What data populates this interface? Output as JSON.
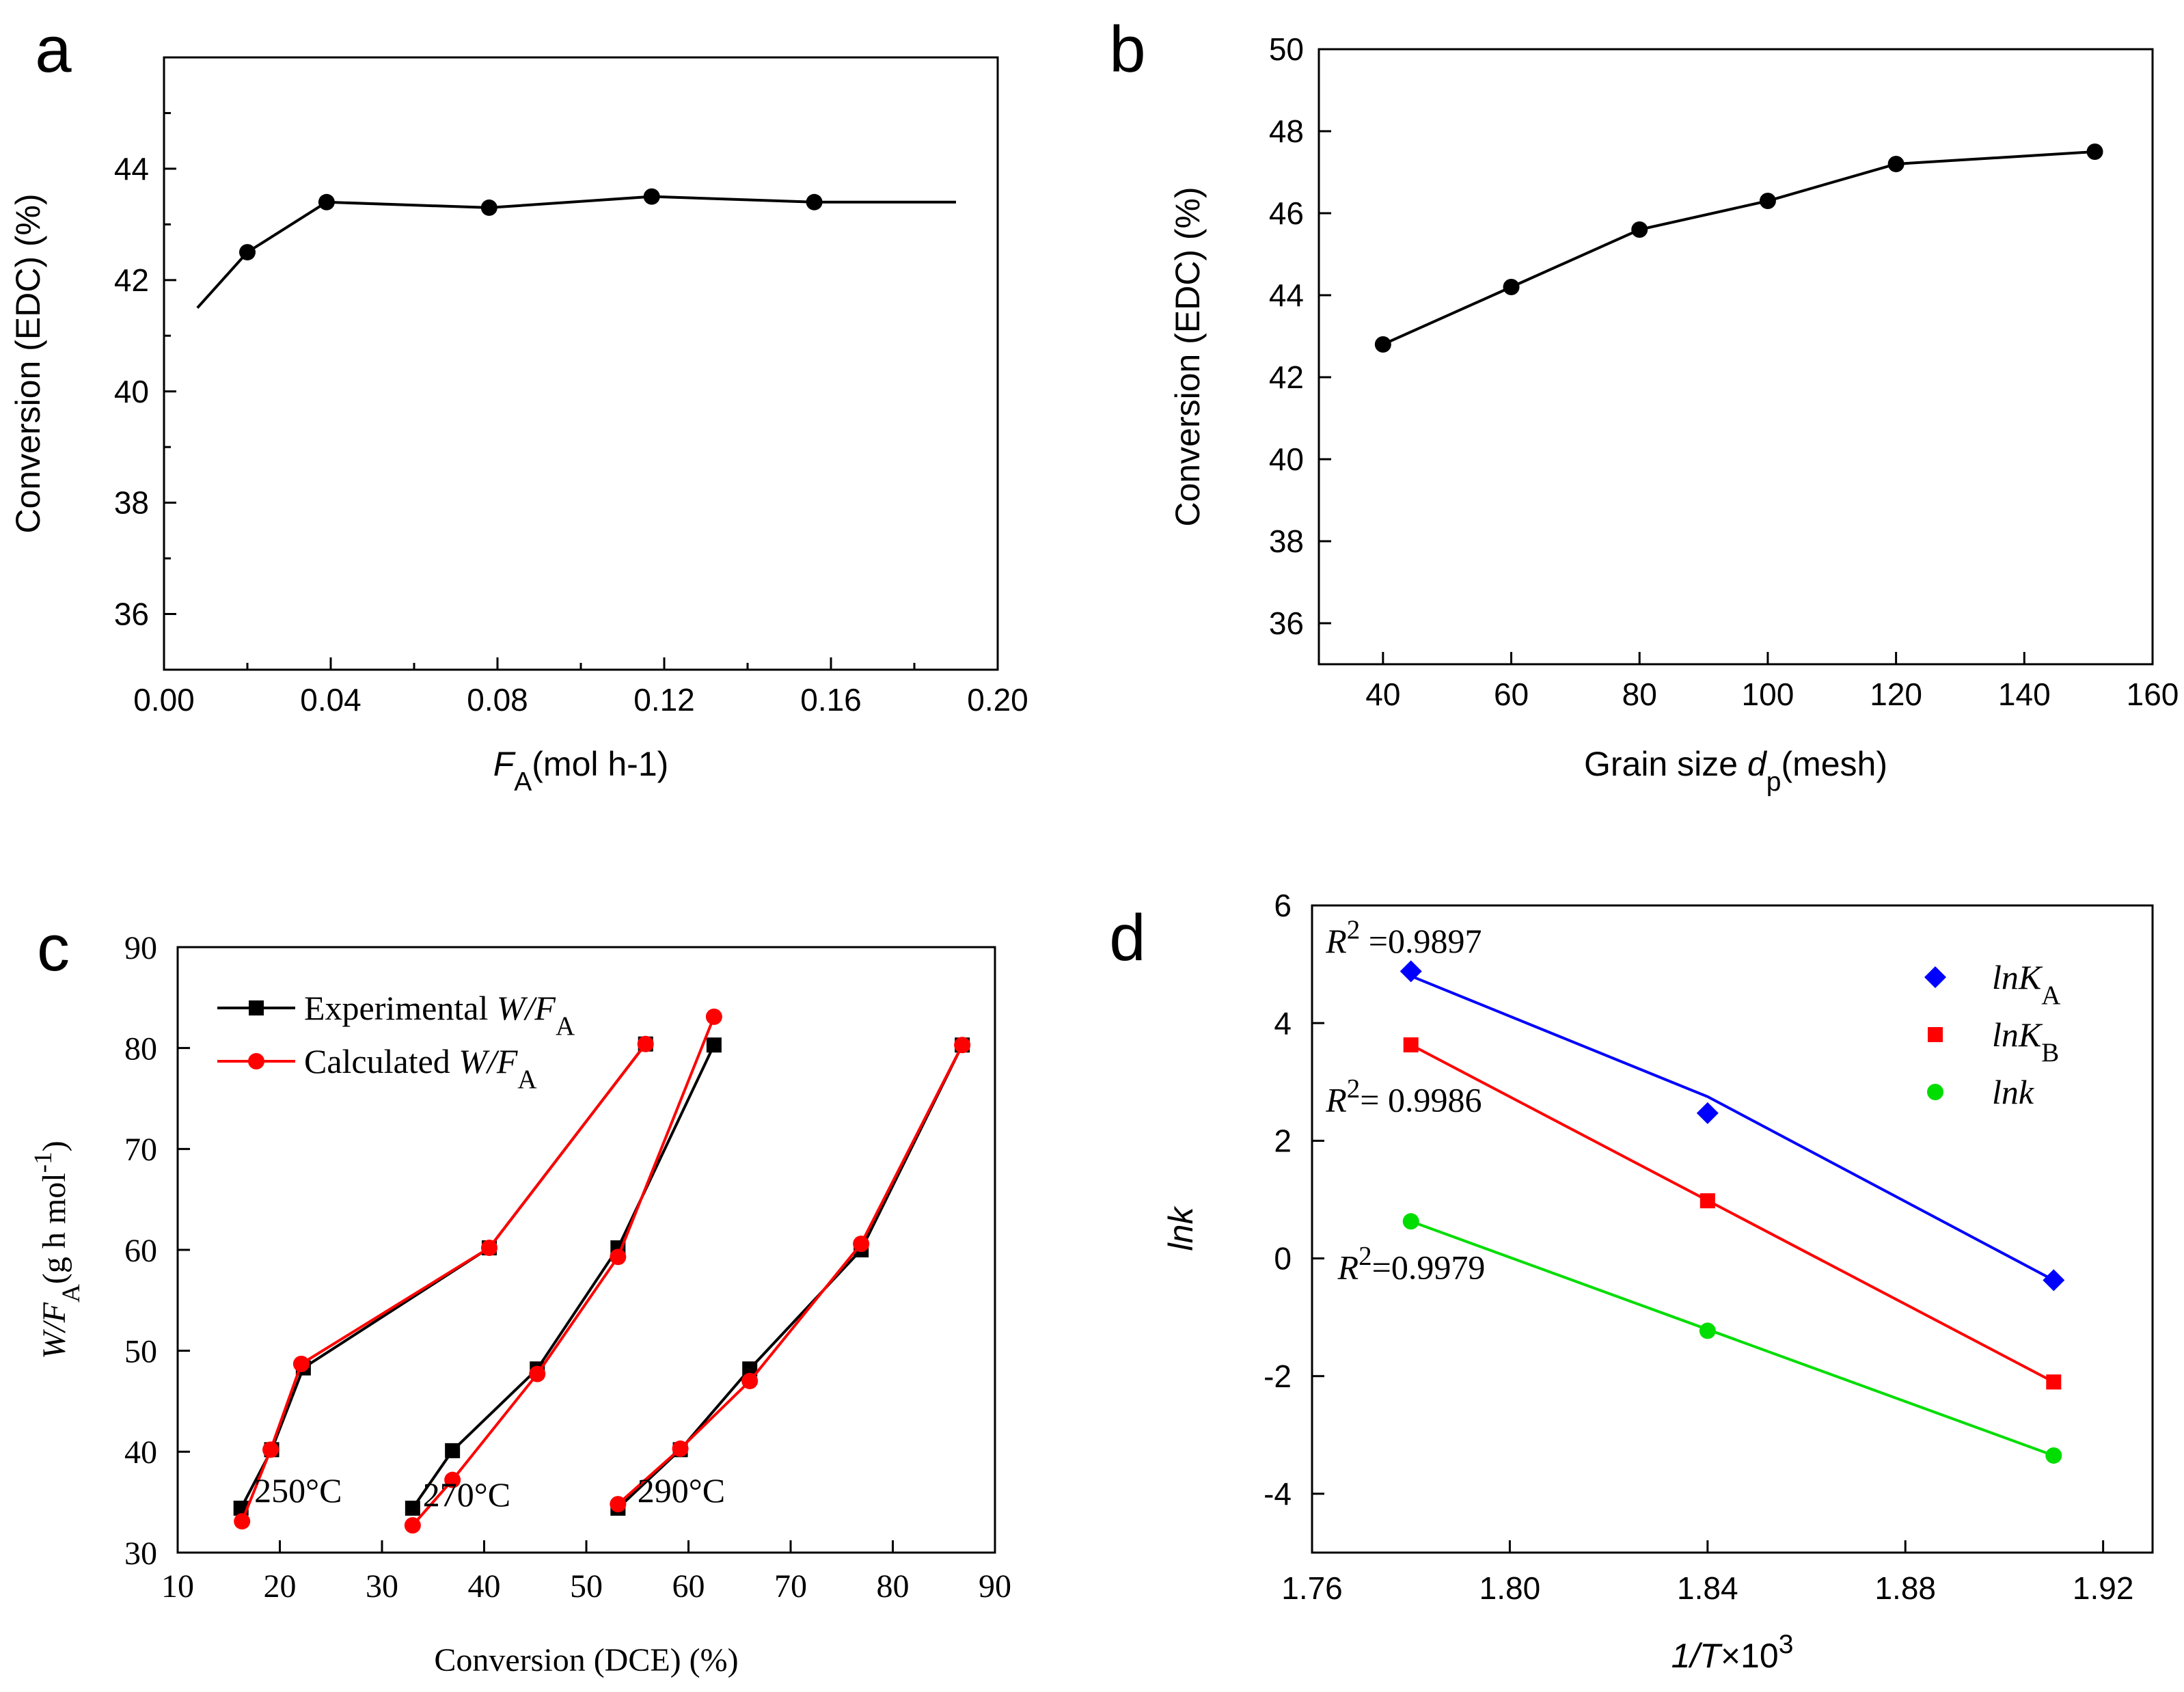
{
  "colors": {
    "axis": "#000000",
    "black": "#000000",
    "red": "#ff0000",
    "blue": "#0000ff",
    "green": "#00dd00",
    "background": "#ffffff"
  },
  "chart_data": [
    {
      "id": "a",
      "panel_label": "a",
      "type": "line",
      "title": "",
      "xlabel": {
        "main": "F",
        "sub": "A",
        "rest": "(mol h-1)"
      },
      "ylabel": "Conversion (EDC) (%)",
      "xlim": [
        0.0,
        0.2
      ],
      "ylim": [
        35,
        46
      ],
      "xticks": [
        0.0,
        0.04,
        0.08,
        0.12,
        0.16,
        0.2
      ],
      "xtick_labels": [
        "0.00",
        "0.04",
        "0.08",
        "0.12",
        "0.16",
        "0.20"
      ],
      "yticks": [
        36,
        38,
        40,
        42,
        44
      ],
      "ytick_labels": [
        "36",
        "38",
        "40",
        "42",
        "44"
      ],
      "grid": false,
      "series": [
        {
          "name": "Conversion",
          "color": "#000000",
          "marker": "circle",
          "line_x": [
            0.008,
            0.02,
            0.039,
            0.078,
            0.117,
            0.156,
            0.19
          ],
          "line_y": [
            41.5,
            42.5,
            43.4,
            43.3,
            43.5,
            43.4,
            43.4
          ],
          "x": [
            0.02,
            0.039,
            0.078,
            0.117,
            0.156
          ],
          "y": [
            42.5,
            43.4,
            43.3,
            43.5,
            43.4
          ]
        }
      ]
    },
    {
      "id": "b",
      "panel_label": "b",
      "type": "line",
      "title": "",
      "xlabel": {
        "main": "Grain size ",
        "italic": "d",
        "sub": "p",
        "rest": "(mesh)"
      },
      "ylabel": "Conversion (EDC) (%)",
      "xlim": [
        30,
        160
      ],
      "ylim": [
        35,
        50
      ],
      "xticks": [
        40,
        60,
        80,
        100,
        120,
        140,
        160
      ],
      "xtick_labels": [
        "40",
        "60",
        "80",
        "100",
        "120",
        "140",
        "160"
      ],
      "yticks": [
        36,
        38,
        40,
        42,
        44,
        46,
        48,
        50
      ],
      "ytick_labels": [
        "36",
        "38",
        "40",
        "42",
        "44",
        "46",
        "48",
        "50"
      ],
      "grid": false,
      "series": [
        {
          "name": "Conversion",
          "color": "#000000",
          "marker": "circle",
          "x": [
            40,
            60,
            80,
            100,
            120,
            151
          ],
          "y": [
            42.8,
            44.2,
            45.6,
            46.3,
            47.2,
            47.5
          ]
        }
      ]
    },
    {
      "id": "c",
      "panel_label": "c",
      "type": "line",
      "title": "",
      "xlabel": "Conversion (DCE) (%)",
      "ylabel": {
        "main": "W/F",
        "sub": "A",
        "rest": "(g h mol",
        "sup": "-1",
        "close": ")"
      },
      "xlim": [
        10,
        90
      ],
      "ylim": [
        30,
        90
      ],
      "xticks": [
        10,
        20,
        30,
        40,
        50,
        60,
        70,
        80,
        90
      ],
      "xtick_labels": [
        "10",
        "20",
        "30",
        "40",
        "50",
        "60",
        "70",
        "80",
        "90"
      ],
      "yticks": [
        30,
        40,
        50,
        60,
        70,
        80,
        90
      ],
      "ytick_labels": [
        "30",
        "40",
        "50",
        "60",
        "70",
        "80",
        "90"
      ],
      "grid": false,
      "legend": {
        "position": "top-left",
        "entries": [
          {
            "prefix": "Experimental ",
            "italic": "W/F",
            "sub": "A"
          },
          {
            "prefix": "Calculated ",
            "italic": "W/F",
            "sub": "A"
          }
        ]
      },
      "annotations": [
        {
          "text": "250°C",
          "x": 17.5,
          "y": 35
        },
        {
          "text": "270°C",
          "x": 34,
          "y": 34.6
        },
        {
          "text": "290°C",
          "x": 55,
          "y": 35
        }
      ],
      "series": [
        {
          "name": "Experimental W/FA 250°C",
          "color": "#000000",
          "marker": "square",
          "x": [
            16.2,
            19.2,
            22.3,
            40.5,
            55.8
          ],
          "y": [
            34.4,
            40.2,
            48.3,
            60.2,
            80.4
          ]
        },
        {
          "name": "Calculated W/FA 250°C",
          "color": "#ff0000",
          "marker": "circle",
          "x": [
            16.3,
            19.1,
            22.1,
            40.5,
            55.8
          ],
          "y": [
            33.1,
            40.2,
            48.7,
            60.2,
            80.4
          ]
        },
        {
          "name": "Experimental W/FA 270°C",
          "color": "#000000",
          "marker": "square",
          "x": [
            33.0,
            36.9,
            45.2,
            53.1,
            62.5
          ],
          "y": [
            34.4,
            40.1,
            48.2,
            60.2,
            80.3
          ]
        },
        {
          "name": "Calculated W/FA 270°C",
          "color": "#ff0000",
          "marker": "circle",
          "x": [
            33.0,
            36.9,
            45.2,
            53.1,
            62.5
          ],
          "y": [
            32.7,
            37.2,
            47.7,
            59.3,
            83.1
          ]
        },
        {
          "name": "Experimental W/FA 290°C",
          "color": "#000000",
          "marker": "square",
          "x": [
            53.1,
            59.2,
            66.0,
            76.9,
            86.8
          ],
          "y": [
            34.4,
            40.2,
            48.2,
            60.0,
            80.3
          ]
        },
        {
          "name": "Calculated W/FA 290°C",
          "color": "#ff0000",
          "marker": "circle",
          "x": [
            53.1,
            59.2,
            66.0,
            76.9,
            86.8
          ],
          "y": [
            34.8,
            40.3,
            47.0,
            60.6,
            80.3
          ]
        }
      ]
    },
    {
      "id": "d",
      "panel_label": "d",
      "type": "scatter",
      "title": "",
      "xlabel": {
        "italic": "1/T",
        "rest": "×10",
        "sup": "3"
      },
      "ylabel": "lnk",
      "xlim": [
        1.76,
        1.93
      ],
      "ylim": [
        -5,
        6
      ],
      "xticks": [
        1.76,
        1.8,
        1.84,
        1.88,
        1.92
      ],
      "xtick_labels": [
        "1.76",
        "1.80",
        "1.84",
        "1.88",
        "1.92"
      ],
      "yticks": [
        -4,
        -2,
        0,
        2,
        4,
        6
      ],
      "ytick_labels": [
        "-4",
        "-2",
        "0",
        "2",
        "4",
        "6"
      ],
      "grid": false,
      "legend": {
        "position": "top-right",
        "entries": [
          {
            "italic": "lnK",
            "sub": "A"
          },
          {
            "italic": "lnK",
            "sub": "B"
          },
          {
            "italic": "lnk",
            "sub": ""
          }
        ]
      },
      "annotations": [
        {
          "italic": "R",
          "sup": "2",
          "rest": " =0.9897",
          "x": 1.7628,
          "y": 5.2
        },
        {
          "italic": "R",
          "sup": "2",
          "rest": "= 0.9986",
          "x": 1.7628,
          "y": 2.5
        },
        {
          "italic": "R",
          "sup": "2",
          "rest": "=0.9979",
          "x": 1.7652,
          "y": -0.35
        }
      ],
      "series": [
        {
          "name": "lnKA",
          "color": "#0000ff",
          "marker": "diamond",
          "x": [
            1.78,
            1.84,
            1.91
          ],
          "y": [
            4.88,
            2.47,
            -0.37
          ],
          "fit_x": [
            1.78,
            1.84,
            1.91
          ],
          "fit_y": [
            4.8,
            2.75,
            -0.37
          ]
        },
        {
          "name": "lnKB",
          "color": "#ff0000",
          "marker": "square",
          "x": [
            1.78,
            1.84,
            1.91
          ],
          "y": [
            3.63,
            0.98,
            -2.1
          ],
          "fit_x": [
            1.78,
            1.91
          ],
          "fit_y": [
            3.63,
            -2.1
          ]
        },
        {
          "name": "lnk",
          "color": "#00dd00",
          "marker": "circle",
          "x": [
            1.78,
            1.84,
            1.91
          ],
          "y": [
            0.63,
            -1.23,
            -3.35
          ],
          "fit_x": [
            1.78,
            1.91
          ],
          "fit_y": [
            0.63,
            -3.35
          ]
        }
      ]
    }
  ]
}
